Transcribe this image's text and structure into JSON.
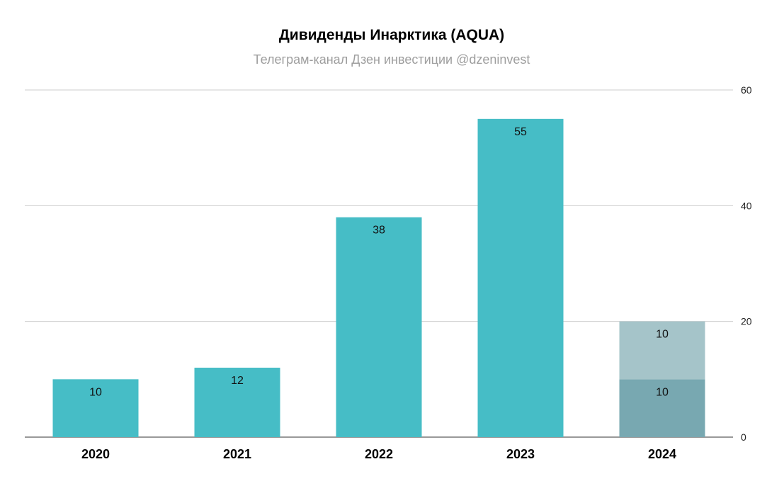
{
  "chart_data": {
    "type": "bar",
    "stacked": true,
    "title": "Дивиденды Инарктика (AQUA)",
    "subtitle": "Телеграм-канал Дзен инвестиции @dzeninvest",
    "categories": [
      "2020",
      "2021",
      "2022",
      "2023",
      "2024"
    ],
    "series": [
      {
        "values": [
          10,
          12,
          38,
          55,
          10
        ],
        "color": "#46bdc6"
      },
      {
        "values": [
          0,
          0,
          0,
          0,
          10
        ],
        "color": "#a5c4c9"
      }
    ],
    "highlight": {
      "category": "2024",
      "base_color": "#78a8b1"
    },
    "data_labels": [
      [
        "10",
        "12",
        "38",
        "55",
        "10"
      ],
      [
        "",
        "",
        "",
        "",
        "10"
      ]
    ],
    "y_ticks": [
      "0",
      "20",
      "40",
      "60"
    ],
    "ylim": [
      0,
      60
    ],
    "y_axis_side": "right",
    "grid": true,
    "xlabel": "",
    "ylabel": ""
  }
}
